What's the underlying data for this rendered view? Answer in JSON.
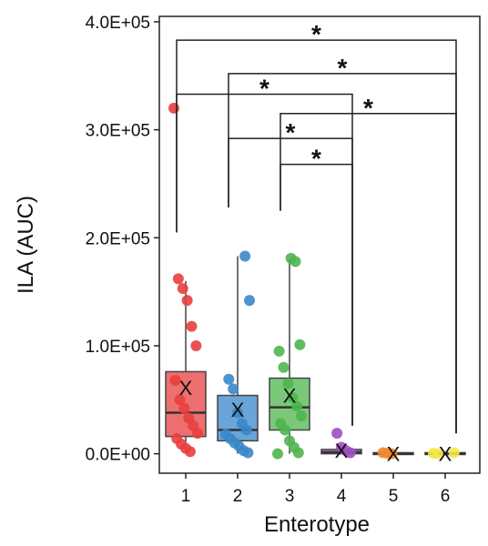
{
  "chart_data": {
    "type": "box",
    "xlabel": "Enterotype",
    "ylabel": "ILA (AUC)",
    "ylim": [
      -18000,
      405000
    ],
    "yticks": [
      {
        "value": 0,
        "label": "0.0E+00"
      },
      {
        "value": 100000,
        "label": "1.0E+05"
      },
      {
        "value": 200000,
        "label": "2.0E+05"
      },
      {
        "value": 300000,
        "label": "3.0E+05"
      },
      {
        "value": 400000,
        "label": "4.0E+05"
      }
    ],
    "categories": [
      "1",
      "2",
      "3",
      "4",
      "5",
      "6"
    ],
    "mean_marker": "X",
    "groups": [
      {
        "category": "1",
        "color": "#e83f3f",
        "box": {
          "q1": 16000,
          "median": 38000,
          "q3": 76000,
          "whisker_low": 0,
          "whisker_high": 160000,
          "mean": 61000
        },
        "points": [
          320000,
          162000,
          153000,
          142000,
          118000,
          100000,
          68000,
          50000,
          42000,
          33000,
          26000,
          19000,
          14000,
          9000,
          5000,
          2000
        ]
      },
      {
        "category": "2",
        "color": "#3a87c9",
        "box": {
          "q1": 12000,
          "median": 22000,
          "q3": 54000,
          "whisker_low": 0,
          "whisker_high": 183000,
          "mean": 41000
        },
        "points": [
          183000,
          142000,
          69000,
          60000,
          38000,
          28000,
          22000,
          18000,
          14000,
          10000,
          7000,
          3000,
          1000
        ]
      },
      {
        "category": "3",
        "color": "#4fb54f",
        "box": {
          "q1": 22000,
          "median": 43000,
          "q3": 70000,
          "whisker_low": 0,
          "whisker_high": 180000,
          "mean": 54000
        },
        "points": [
          181000,
          178000,
          101000,
          95000,
          80000,
          65000,
          52000,
          44000,
          35000,
          28000,
          22000,
          12000,
          6000,
          1000,
          0
        ]
      },
      {
        "category": "4",
        "color": "#9e4fc2",
        "box": {
          "q1": 0,
          "median": 1500,
          "q3": 4000,
          "whisker_low": 0,
          "whisker_high": 8000,
          "mean": 3000
        },
        "points": [
          19000,
          6000,
          3000,
          1000
        ]
      },
      {
        "category": "5",
        "color": "#f08a2c",
        "box": {
          "q1": 0,
          "median": 0,
          "q3": 1000,
          "whisker_low": 0,
          "whisker_high": 1000,
          "mean": 300
        },
        "points": [
          1000,
          400,
          0
        ]
      },
      {
        "category": "6",
        "color": "#f2e84a",
        "box": {
          "q1": 0,
          "median": 0,
          "q3": 1000,
          "whisker_low": 0,
          "whisker_high": 1000,
          "mean": 300
        },
        "points": [
          1000,
          500,
          0
        ]
      }
    ],
    "significance": [
      {
        "from": "1",
        "to": "6",
        "level": 383000,
        "label": "*"
      },
      {
        "from": "2",
        "to": "6",
        "level": 352000,
        "label": "*"
      },
      {
        "from": "1",
        "to": "4",
        "level": 333000,
        "label": "*"
      },
      {
        "from": "3",
        "to": "6",
        "level": 315000,
        "label": "*"
      },
      {
        "from": "2",
        "to": "4",
        "level": 292000,
        "label": "*"
      },
      {
        "from": "3",
        "to": "4",
        "level": 268000,
        "label": "*"
      }
    ]
  }
}
